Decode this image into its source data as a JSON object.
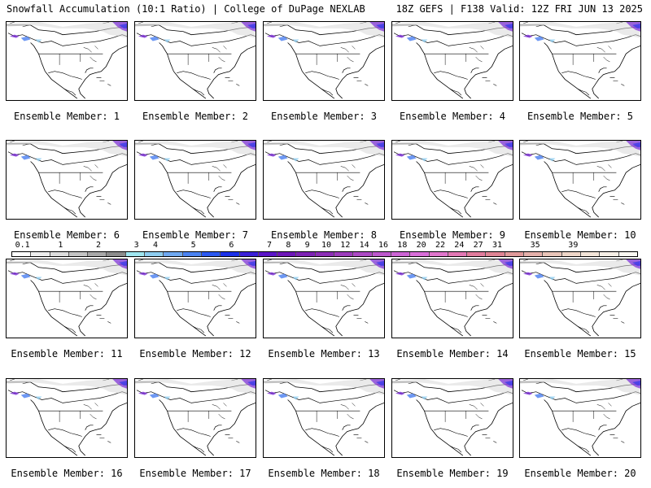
{
  "header": {
    "title": "Snowfall Accumulation (10:1 Ratio) | College of DuPage NEXLAB",
    "run_info": "18Z GEFS | F138 Valid: 12Z FRI JUN 13 2025"
  },
  "panels": [
    {
      "label": "Ensemble Member: 1"
    },
    {
      "label": "Ensemble Member: 2"
    },
    {
      "label": "Ensemble Member: 3"
    },
    {
      "label": "Ensemble Member: 4"
    },
    {
      "label": "Ensemble Member: 5"
    },
    {
      "label": "Ensemble Member: 6"
    },
    {
      "label": "Ensemble Member: 7"
    },
    {
      "label": "Ensemble Member: 8"
    },
    {
      "label": "Ensemble Member: 9"
    },
    {
      "label": "Ensemble Member: 10"
    },
    {
      "label": "Ensemble Member: 11"
    },
    {
      "label": "Ensemble Member: 12"
    },
    {
      "label": "Ensemble Member: 13"
    },
    {
      "label": "Ensemble Member: 14"
    },
    {
      "label": "Ensemble Member: 15"
    },
    {
      "label": "Ensemble Member: 16"
    },
    {
      "label": "Ensemble Member: 17"
    },
    {
      "label": "Ensemble Member: 18"
    },
    {
      "label": "Ensemble Member: 19"
    },
    {
      "label": "Ensemble Member: 20"
    }
  ],
  "colorbar": {
    "labels": [
      "0.1",
      "1",
      "2",
      "3",
      "4",
      "5",
      "6",
      "7",
      "8",
      "9",
      "10",
      "12",
      "14",
      "16",
      "18",
      "20",
      "22",
      "24",
      "27",
      "31",
      "35",
      "39"
    ],
    "colors": [
      "#ffffff",
      "#eeeeee",
      "#dddddd",
      "#c4c4c4",
      "#a8a8a8",
      "#8c8c8c",
      "#9fe6f0",
      "#8ecdf0",
      "#6fa8f0",
      "#4a82f0",
      "#2a58f0",
      "#1a30e8",
      "#3a1fd8",
      "#5a14c8",
      "#6d16b8",
      "#7d22b4",
      "#8c2eb6",
      "#9c3cbc",
      "#ac4ac4",
      "#bc58cc",
      "#cc64d4",
      "#d86ed8",
      "#e076cc",
      "#e278b4",
      "#e07c9c",
      "#de8494",
      "#e09a9a",
      "#e4b0aa",
      "#e8c4b8",
      "#eed6c8",
      "#f2e4d8",
      "#f6efe6",
      "#faf8f2"
    ]
  }
}
